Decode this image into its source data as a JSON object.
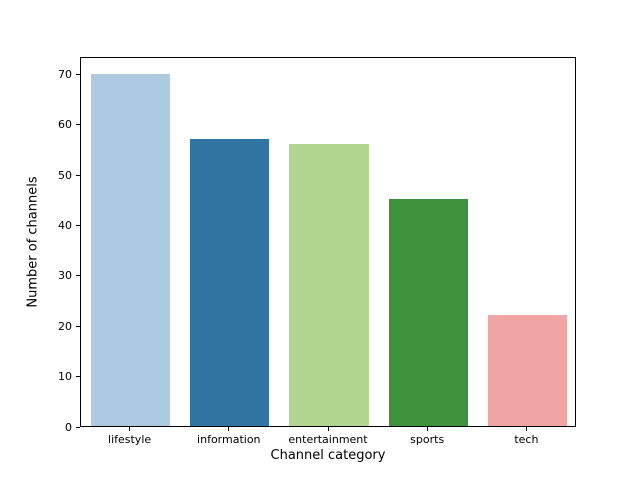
{
  "chart_data": {
    "type": "bar",
    "categories": [
      "lifestyle",
      "information",
      "entertainment",
      "sports",
      "tech"
    ],
    "values": [
      70,
      57,
      56,
      45,
      22
    ],
    "bar_colors": [
      "#adcbe0",
      "#3274a1",
      "#b1d48e",
      "#3f923c",
      "#efa5a3"
    ],
    "xlabel": "Channel category",
    "ylabel": "Number of channels",
    "ylim": [
      0,
      73.5
    ],
    "yticks": [
      0,
      10,
      20,
      30,
      40,
      50,
      60,
      70
    ],
    "grid": false,
    "legend": "none",
    "background_color": "#ffffff",
    "spine_color": "#000000"
  }
}
